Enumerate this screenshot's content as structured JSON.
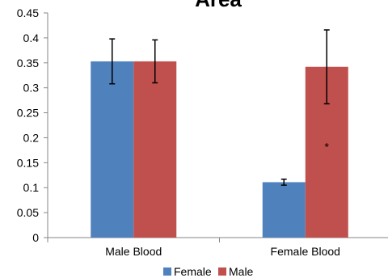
{
  "chart_data": {
    "type": "bar",
    "title": "Area",
    "xlabel": "",
    "ylabel": "",
    "ylim": [
      0,
      0.45
    ],
    "yticks": [
      "0",
      "0.05",
      "0.1",
      "0.15",
      "0.2",
      "0.25",
      "0.3",
      "0.35",
      "0.4",
      "0.45"
    ],
    "categories": [
      "Male Blood",
      "Female Blood"
    ],
    "series": [
      {
        "name": "Female",
        "color": "#4f81bd",
        "values": [
          0.353,
          0.111
        ],
        "errors": [
          0.045,
          0.006
        ]
      },
      {
        "name": "Male",
        "color": "#c0504d",
        "values": [
          0.353,
          0.342
        ],
        "errors": [
          0.043,
          0.074
        ]
      }
    ],
    "annotations": [
      {
        "text": "*",
        "category": "Female Blood",
        "series": "Male",
        "y": 0.19
      }
    ],
    "grid": false,
    "legend": "bottom"
  }
}
